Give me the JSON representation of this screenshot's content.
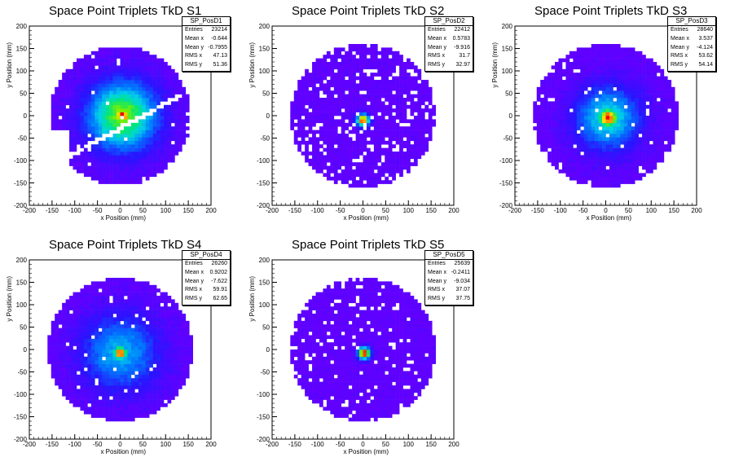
{
  "chart_data": [
    {
      "type": "heatmap",
      "title": "Space Point Triplets TkD S1",
      "xlabel": "x Position (mm)",
      "ylabel": "y Position (mm)",
      "xlim": [
        -200,
        200
      ],
      "ylim": [
        -200,
        200
      ],
      "xticks": [
        "-200",
        "-150",
        "-100",
        "-50",
        "0",
        "50",
        "100",
        "150",
        "200"
      ],
      "yticks": [
        "-200",
        "-150",
        "-100",
        "-50",
        "0",
        "50",
        "100",
        "150",
        "200"
      ],
      "stats": {
        "name": "SP_PosD1",
        "rows": [
          [
            "Entries",
            "23214"
          ],
          [
            "Mean x",
            "-0.644"
          ],
          [
            "Mean y",
            "-0.7955"
          ],
          [
            "RMS x",
            "47.13"
          ],
          [
            "RMS y",
            "51.36"
          ]
        ]
      },
      "profile": {
        "cx": 5,
        "cy": 0,
        "radius": 155,
        "core_sigma": 15,
        "halo_sigma": 55,
        "halo_weight": 0.75,
        "gap_band": true,
        "sparse": 0.02
      }
    },
    {
      "type": "heatmap",
      "title": "Space Point Triplets TkD S2",
      "xlabel": "x Position (mm)",
      "ylabel": "y Position (mm)",
      "xlim": [
        -200,
        200
      ],
      "ylim": [
        -200,
        200
      ],
      "xticks": [
        "-200",
        "-150",
        "-100",
        "-50",
        "0",
        "50",
        "100",
        "150",
        "200"
      ],
      "yticks": [
        "-200",
        "-150",
        "-100",
        "-50",
        "0",
        "50",
        "100",
        "150",
        "200"
      ],
      "stats": {
        "name": "SP_PosD2",
        "rows": [
          [
            "Entries",
            "22412"
          ],
          [
            "Mean x",
            "0.5783"
          ],
          [
            "Mean y",
            "-9.916"
          ],
          [
            "RMS x",
            "31.7"
          ],
          [
            "RMS y",
            "32.97"
          ]
        ]
      },
      "profile": {
        "cx": 0,
        "cy": -10,
        "radius": 160,
        "core_sigma": 10,
        "halo_sigma": 200,
        "halo_weight": 0.0,
        "gap_band": false,
        "sparse": 0.12
      }
    },
    {
      "type": "heatmap",
      "title": "Space Point Triplets TkD S3",
      "xlabel": "x Position (mm)",
      "ylabel": "y Position (mm)",
      "xlim": [
        -200,
        200
      ],
      "ylim": [
        -200,
        200
      ],
      "xticks": [
        "-200",
        "-150",
        "-100",
        "-50",
        "0",
        "50",
        "100",
        "150",
        "200"
      ],
      "yticks": [
        "-200",
        "-150",
        "-100",
        "-50",
        "0",
        "50",
        "100",
        "150",
        "200"
      ],
      "stats": {
        "name": "SP_PosD3",
        "rows": [
          [
            "Entries",
            "28640"
          ],
          [
            "Mean x",
            "3.537"
          ],
          [
            "Mean y",
            "-4.124"
          ],
          [
            "RMS x",
            "53.62"
          ],
          [
            "RMS y",
            "54.14"
          ]
        ]
      },
      "profile": {
        "cx": 5,
        "cy": -5,
        "radius": 160,
        "core_sigma": 18,
        "halo_sigma": 50,
        "halo_weight": 0.55,
        "gap_band": false,
        "sparse": 0.03
      }
    },
    {
      "type": "heatmap",
      "title": "Space Point Triplets TkD S4",
      "xlabel": "x Position (mm)",
      "ylabel": "y Position (mm)",
      "xlim": [
        -200,
        200
      ],
      "ylim": [
        -200,
        200
      ],
      "xticks": [
        "-200",
        "-150",
        "-100",
        "-50",
        "0",
        "50",
        "100",
        "150",
        "200"
      ],
      "yticks": [
        "-200",
        "-150",
        "-100",
        "-50",
        "0",
        "50",
        "100",
        "150",
        "200"
      ],
      "stats": {
        "name": "SP_PosD4",
        "rows": [
          [
            "Entries",
            "26260"
          ],
          [
            "Mean x",
            "0.9202"
          ],
          [
            "Mean y",
            "-7.622"
          ],
          [
            "RMS x",
            "59.91"
          ],
          [
            "RMS y",
            "62.65"
          ]
        ]
      },
      "profile": {
        "cx": 0,
        "cy": -7,
        "radius": 160,
        "core_sigma": 12,
        "halo_sigma": 60,
        "halo_weight": 0.45,
        "gap_band": false,
        "sparse": 0.03
      }
    },
    {
      "type": "heatmap",
      "title": "Space Point Triplets TkD S5",
      "xlabel": "x Position (mm)",
      "ylabel": "y Position (mm)",
      "xlim": [
        -200,
        200
      ],
      "ylim": [
        -200,
        200
      ],
      "xticks": [
        "-200",
        "-150",
        "-100",
        "-50",
        "0",
        "50",
        "100",
        "150",
        "200"
      ],
      "yticks": [
        "-200",
        "-150",
        "-100",
        "-50",
        "0",
        "50",
        "100",
        "150",
        "200"
      ],
      "stats": {
        "name": "SP_PosD5",
        "rows": [
          [
            "Entries",
            "25639"
          ],
          [
            "Mean x",
            "-0.2411"
          ],
          [
            "Mean y",
            "-9.034"
          ],
          [
            "RMS x",
            "37.07"
          ],
          [
            "RMS y",
            "37.75"
          ]
        ]
      },
      "profile": {
        "cx": 3,
        "cy": -8,
        "radius": 160,
        "core_sigma": 10,
        "halo_sigma": 200,
        "halo_weight": 0.0,
        "gap_band": false,
        "sparse": 0.08
      }
    }
  ]
}
